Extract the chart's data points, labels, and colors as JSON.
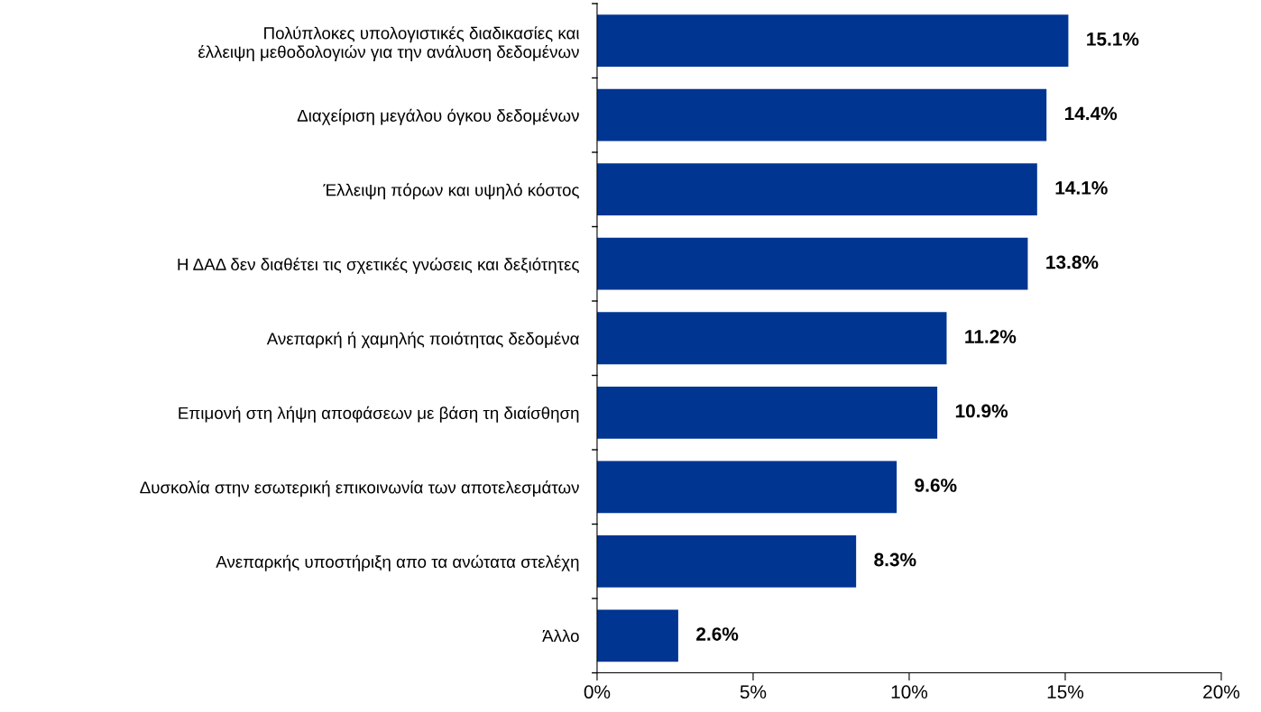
{
  "chart_data": {
    "type": "bar",
    "orientation": "horizontal",
    "categories": [
      "Πολύπλοκες υπολογιστικές διαδικασίες και\nέλλειψη μεθοδολογιών για την ανάλυση δεδομένων",
      "Διαχείριση μεγάλου όγκου δεδομένων",
      "Έλλειψη πόρων και υψηλό κόστος",
      "Η ΔΑΔ δεν διαθέτει τις σχετικές γνώσεις και δεξιότητες",
      "Ανεπαρκή ή χαμηλής ποιότητας δεδομένα",
      "Επιμονή στη λήψη αποφάσεων με βάση τη διαίσθηση",
      "Δυσκολία στην εσωτερική επικοινωνία των αποτελεσμάτων",
      "Ανεπαρκής υποστήριξη απο τα ανώτατα στελέχη",
      "Άλλο"
    ],
    "values": [
      15.1,
      14.4,
      14.1,
      13.8,
      11.2,
      10.9,
      9.6,
      8.3,
      2.6
    ],
    "value_labels": [
      "15.1%",
      "14.4%",
      "14.1%",
      "13.8%",
      "11.2%",
      "10.9%",
      "9.6%",
      "8.3%",
      "2.6%"
    ],
    "color": "#003592",
    "xlim": [
      0,
      20
    ],
    "xticks": [
      {
        "value": 0,
        "label": "0%"
      },
      {
        "value": 5,
        "label": "5%"
      },
      {
        "value": 10,
        "label": "10%"
      },
      {
        "value": 15,
        "label": "15%"
      },
      {
        "value": 20,
        "label": "20%"
      }
    ],
    "grid": false,
    "legend": false
  }
}
